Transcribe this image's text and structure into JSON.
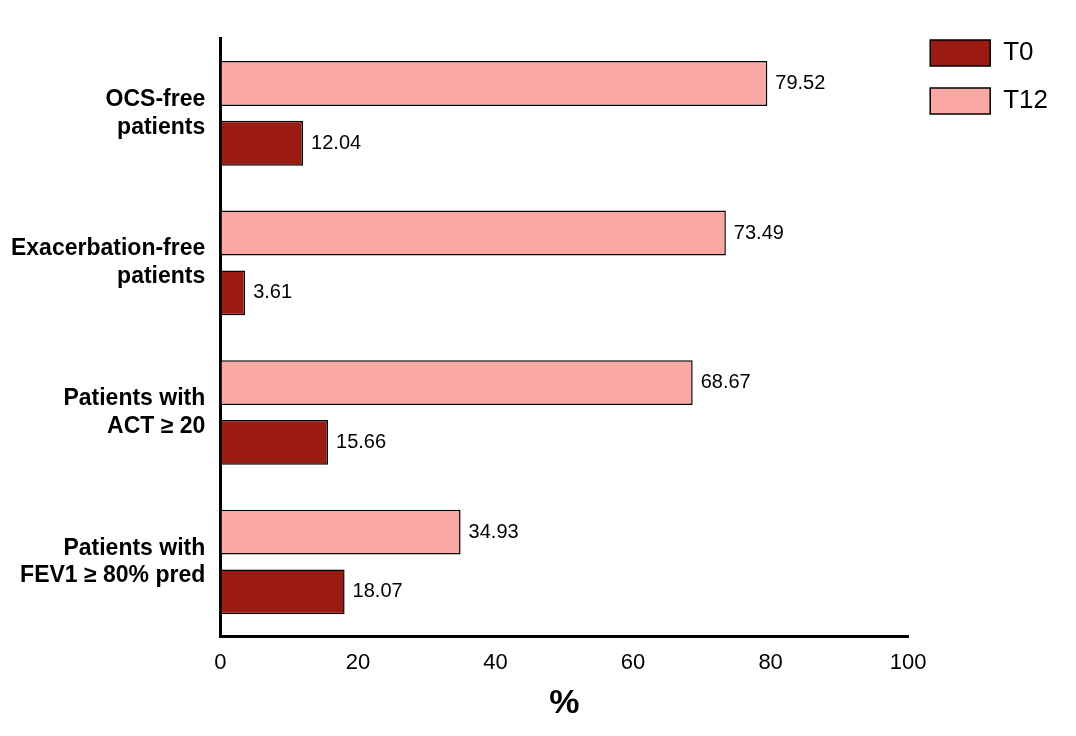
{
  "chart_data": {
    "type": "bar",
    "orientation": "horizontal",
    "categories": [
      "OCS-free patients",
      "Exacerbation-free patients",
      "Patients with ACT ≥ 20",
      "Patients with FEV1 ≥ 80% pred"
    ],
    "series": [
      {
        "name": "T0",
        "color": "#9b1b12",
        "values": [
          12.04,
          3.61,
          15.66,
          18.07
        ]
      },
      {
        "name": "T12",
        "color": "#f9a8a3",
        "values": [
          79.52,
          73.49,
          68.67,
          34.93
        ]
      }
    ],
    "xlabel": "%",
    "xlim": [
      0,
      100
    ],
    "xticks": [
      0,
      20,
      40,
      60,
      80,
      100
    ],
    "grid": false,
    "legend": "top right",
    "data_labels": true
  }
}
